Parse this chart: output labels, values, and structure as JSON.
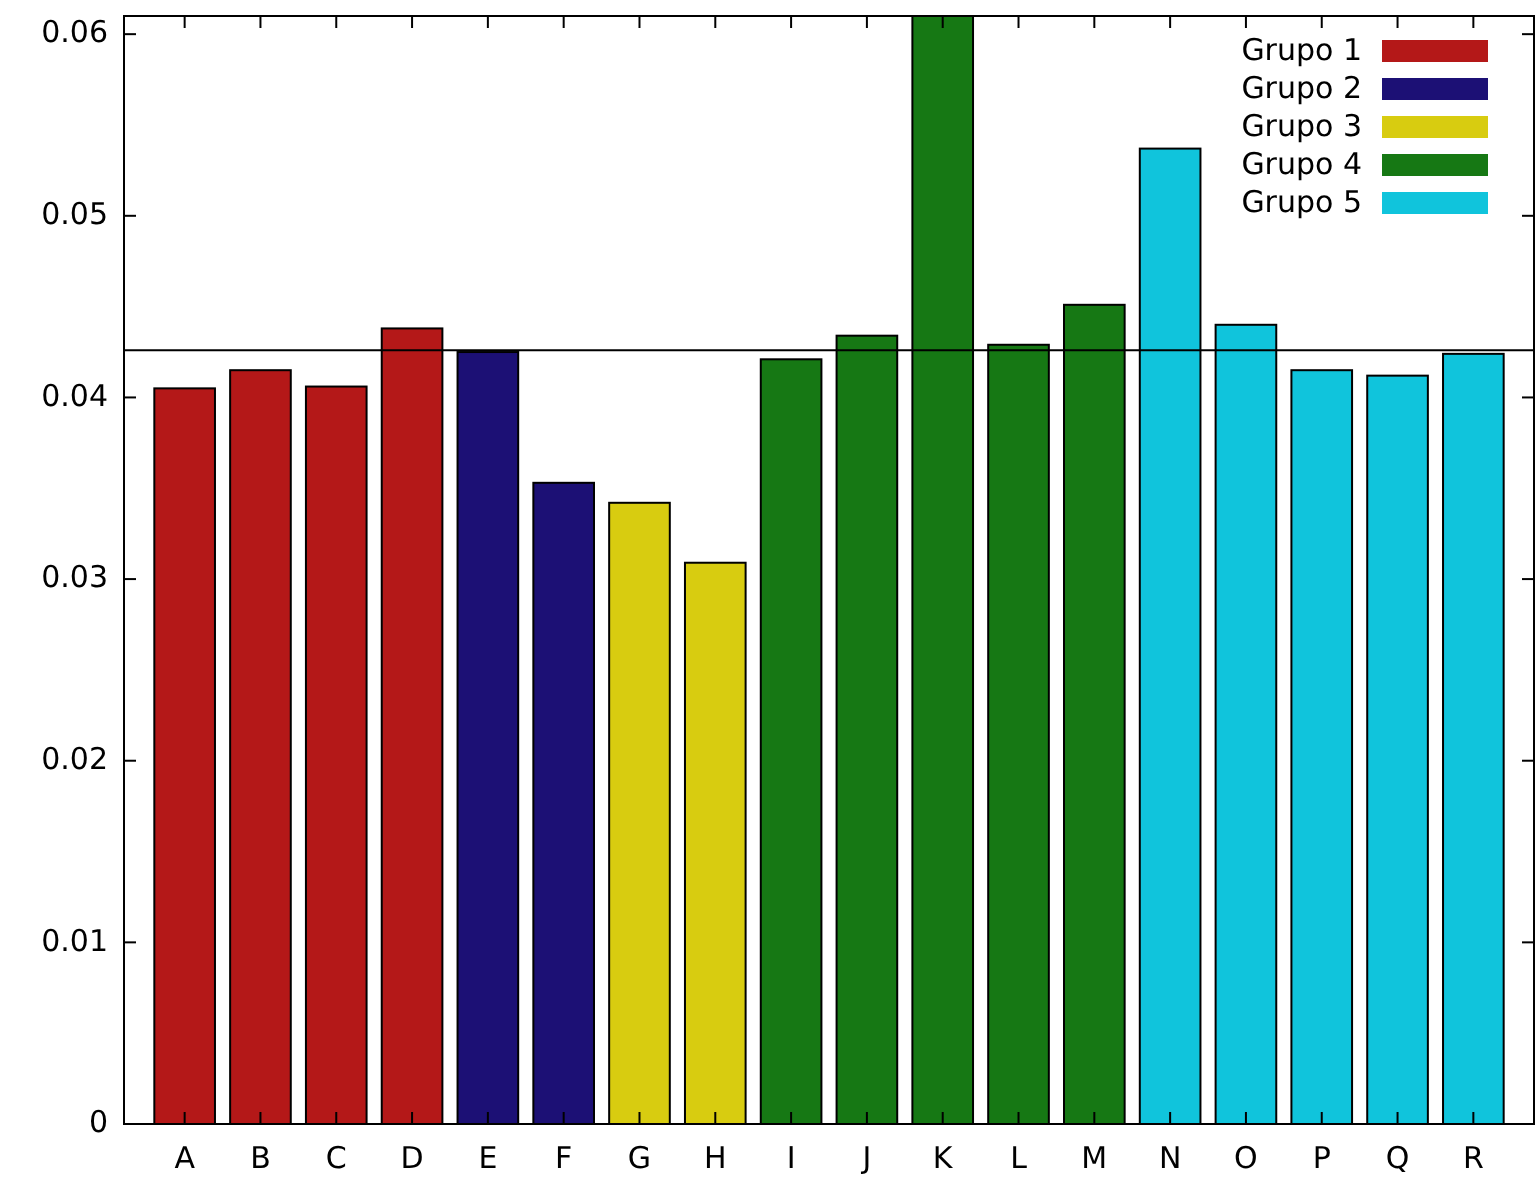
{
  "chart_data": {
    "type": "bar",
    "categories": [
      "A",
      "B",
      "C",
      "D",
      "E",
      "F",
      "G",
      "H",
      "I",
      "J",
      "K",
      "L",
      "M",
      "N",
      "O",
      "P",
      "Q",
      "R"
    ],
    "series": [
      {
        "name": "Grupo 1",
        "color": "#b41818",
        "values": [
          0.0405,
          0.0415,
          0.0406,
          0.0438,
          null,
          null,
          null,
          null,
          null,
          null,
          null,
          null,
          null,
          null,
          null,
          null,
          null,
          null
        ]
      },
      {
        "name": "Grupo 2",
        "color": "#1c1075",
        "values": [
          null,
          null,
          null,
          null,
          0.0425,
          0.0353,
          null,
          null,
          null,
          null,
          null,
          null,
          null,
          null,
          null,
          null,
          null,
          null
        ]
      },
      {
        "name": "Grupo 3",
        "color": "#d8cc10",
        "values": [
          null,
          null,
          null,
          null,
          null,
          null,
          0.0342,
          0.0309,
          null,
          null,
          null,
          null,
          null,
          null,
          null,
          null,
          null,
          null
        ]
      },
      {
        "name": "Grupo 4",
        "color": "#167814",
        "values": [
          null,
          null,
          null,
          null,
          null,
          null,
          null,
          null,
          0.0421,
          0.0434,
          0.061,
          0.0429,
          0.0451,
          null,
          null,
          null,
          null,
          null
        ]
      },
      {
        "name": "Grupo 5",
        "color": "#10c4dc",
        "values": [
          null,
          null,
          null,
          null,
          null,
          null,
          null,
          null,
          null,
          null,
          null,
          null,
          null,
          0.0537,
          0.044,
          0.0415,
          0.0412,
          0.0424
        ]
      }
    ],
    "ylim": [
      0,
      0.061
    ],
    "yticks": [
      0,
      0.01,
      0.02,
      0.03,
      0.04,
      0.05,
      0.06
    ],
    "ref_lines": [
      {
        "axis": "y",
        "value": 0.0426,
        "color": "#000000"
      }
    ],
    "legend": "top right",
    "grid": false
  }
}
